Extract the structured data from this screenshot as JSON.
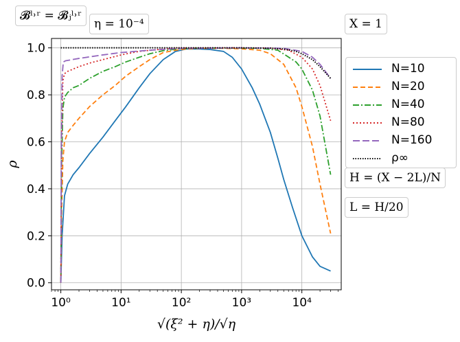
{
  "chart_data": {
    "type": "line",
    "xscale": "log",
    "xlim": [
      0.7,
      45000
    ],
    "ylim": [
      -0.03,
      1.04
    ],
    "grid": true,
    "legend_position": "right",
    "xlabel": "√(ξ² + η)/√η",
    "ylabel": "ρ",
    "x_ticks": [
      {
        "value": 1,
        "label": "10⁰"
      },
      {
        "value": 10,
        "label": "10¹"
      },
      {
        "value": 100,
        "label": "10²"
      },
      {
        "value": 1000,
        "label": "10³"
      },
      {
        "value": 10000,
        "label": "10⁴"
      }
    ],
    "y_ticks": [
      {
        "value": 0.0,
        "label": "0.0"
      },
      {
        "value": 0.2,
        "label": "0.2"
      },
      {
        "value": 0.4,
        "label": "0.4"
      },
      {
        "value": 0.6,
        "label": "0.6"
      },
      {
        "value": 0.8,
        "label": "0.8"
      },
      {
        "value": 1.0,
        "label": "1.0"
      }
    ],
    "series": [
      {
        "name": "N=10",
        "color": "#1f77b4",
        "dash": "solid",
        "x": [
          1.0,
          1.05,
          1.15,
          1.3,
          1.6,
          2,
          3,
          5,
          8,
          12,
          20,
          30,
          50,
          80,
          120,
          200,
          300,
          500,
          700,
          1000,
          1500,
          2000,
          3000,
          4000,
          5000,
          7000,
          10000,
          15000,
          20000,
          30000
        ],
        "y": [
          0.0,
          0.2,
          0.37,
          0.42,
          0.46,
          0.49,
          0.55,
          0.62,
          0.69,
          0.75,
          0.83,
          0.89,
          0.95,
          0.985,
          0.995,
          0.995,
          0.993,
          0.985,
          0.96,
          0.91,
          0.83,
          0.76,
          0.64,
          0.53,
          0.44,
          0.32,
          0.2,
          0.11,
          0.07,
          0.05
        ]
      },
      {
        "name": "N=20",
        "color": "#ff7f0e",
        "dash": "dashed",
        "x": [
          1.0,
          1.03,
          1.08,
          1.15,
          1.3,
          1.6,
          2,
          3,
          5,
          8,
          12,
          20,
          30,
          50,
          80,
          120,
          200,
          500,
          1000,
          2000,
          3000,
          5000,
          8000,
          10000,
          15000,
          20000,
          30000
        ],
        "y": [
          0.0,
          0.3,
          0.52,
          0.6,
          0.64,
          0.67,
          0.7,
          0.75,
          0.8,
          0.84,
          0.88,
          0.92,
          0.95,
          0.98,
          0.99,
          0.995,
          0.998,
          0.998,
          0.996,
          0.99,
          0.975,
          0.93,
          0.83,
          0.75,
          0.58,
          0.42,
          0.21
        ]
      },
      {
        "name": "N=40",
        "color": "#2ca02c",
        "dash": "dashdot",
        "x": [
          1.0,
          1.03,
          1.08,
          1.15,
          1.3,
          1.6,
          2,
          3,
          5,
          8,
          12,
          20,
          30,
          50,
          100,
          200,
          500,
          1000,
          2000,
          4000,
          8000,
          10000,
          15000,
          20000,
          30000
        ],
        "y": [
          0.0,
          0.5,
          0.74,
          0.79,
          0.81,
          0.83,
          0.84,
          0.87,
          0.9,
          0.92,
          0.94,
          0.96,
          0.975,
          0.988,
          0.997,
          0.999,
          0.999,
          0.999,
          0.998,
          0.99,
          0.94,
          0.91,
          0.82,
          0.71,
          0.46
        ]
      },
      {
        "name": "N=80",
        "color": "#d62728",
        "dash": "dotted",
        "x": [
          1.0,
          1.03,
          1.08,
          1.15,
          1.3,
          2,
          3,
          5,
          10,
          20,
          50,
          100,
          500,
          1000,
          3000,
          6000,
          10000,
          15000,
          20000,
          30000
        ],
        "y": [
          0.0,
          0.6,
          0.86,
          0.89,
          0.9,
          0.92,
          0.935,
          0.95,
          0.97,
          0.985,
          0.995,
          0.999,
          1.0,
          1.0,
          0.999,
          0.99,
          0.96,
          0.91,
          0.84,
          0.69
        ]
      },
      {
        "name": "N=160",
        "color": "#9467bd",
        "dash": "longdash",
        "x": [
          1.0,
          1.02,
          1.05,
          1.1,
          1.2,
          2,
          5,
          10,
          30,
          100,
          1000,
          5000,
          10000,
          15000,
          20000,
          30000
        ],
        "y": [
          0.0,
          0.55,
          0.88,
          0.94,
          0.945,
          0.955,
          0.97,
          0.98,
          0.99,
          0.998,
          1.0,
          0.998,
          0.985,
          0.96,
          0.93,
          0.87
        ]
      },
      {
        "name": "ρ∞",
        "color": "#000000",
        "dash": "densedot",
        "x": [
          1.0,
          100,
          1000,
          3000,
          5000,
          8000,
          10000,
          15000,
          20000,
          30000
        ],
        "y": [
          1.0,
          1.0,
          1.0,
          0.999,
          0.995,
          0.985,
          0.975,
          0.95,
          0.92,
          0.87
        ]
      }
    ],
    "annotations": [
      {
        "key": "ann_b",
        "text": "𝓑ˡ˒ʳ = 𝓑ⱼˡ˒ʳ"
      },
      {
        "key": "ann_eta",
        "text": "η = 10⁻⁴"
      },
      {
        "key": "ann_x",
        "text": "X = 1"
      },
      {
        "key": "ann_h",
        "text": "H = (X − 2L)/N"
      },
      {
        "key": "ann_l",
        "text": "L = H/20"
      }
    ]
  }
}
